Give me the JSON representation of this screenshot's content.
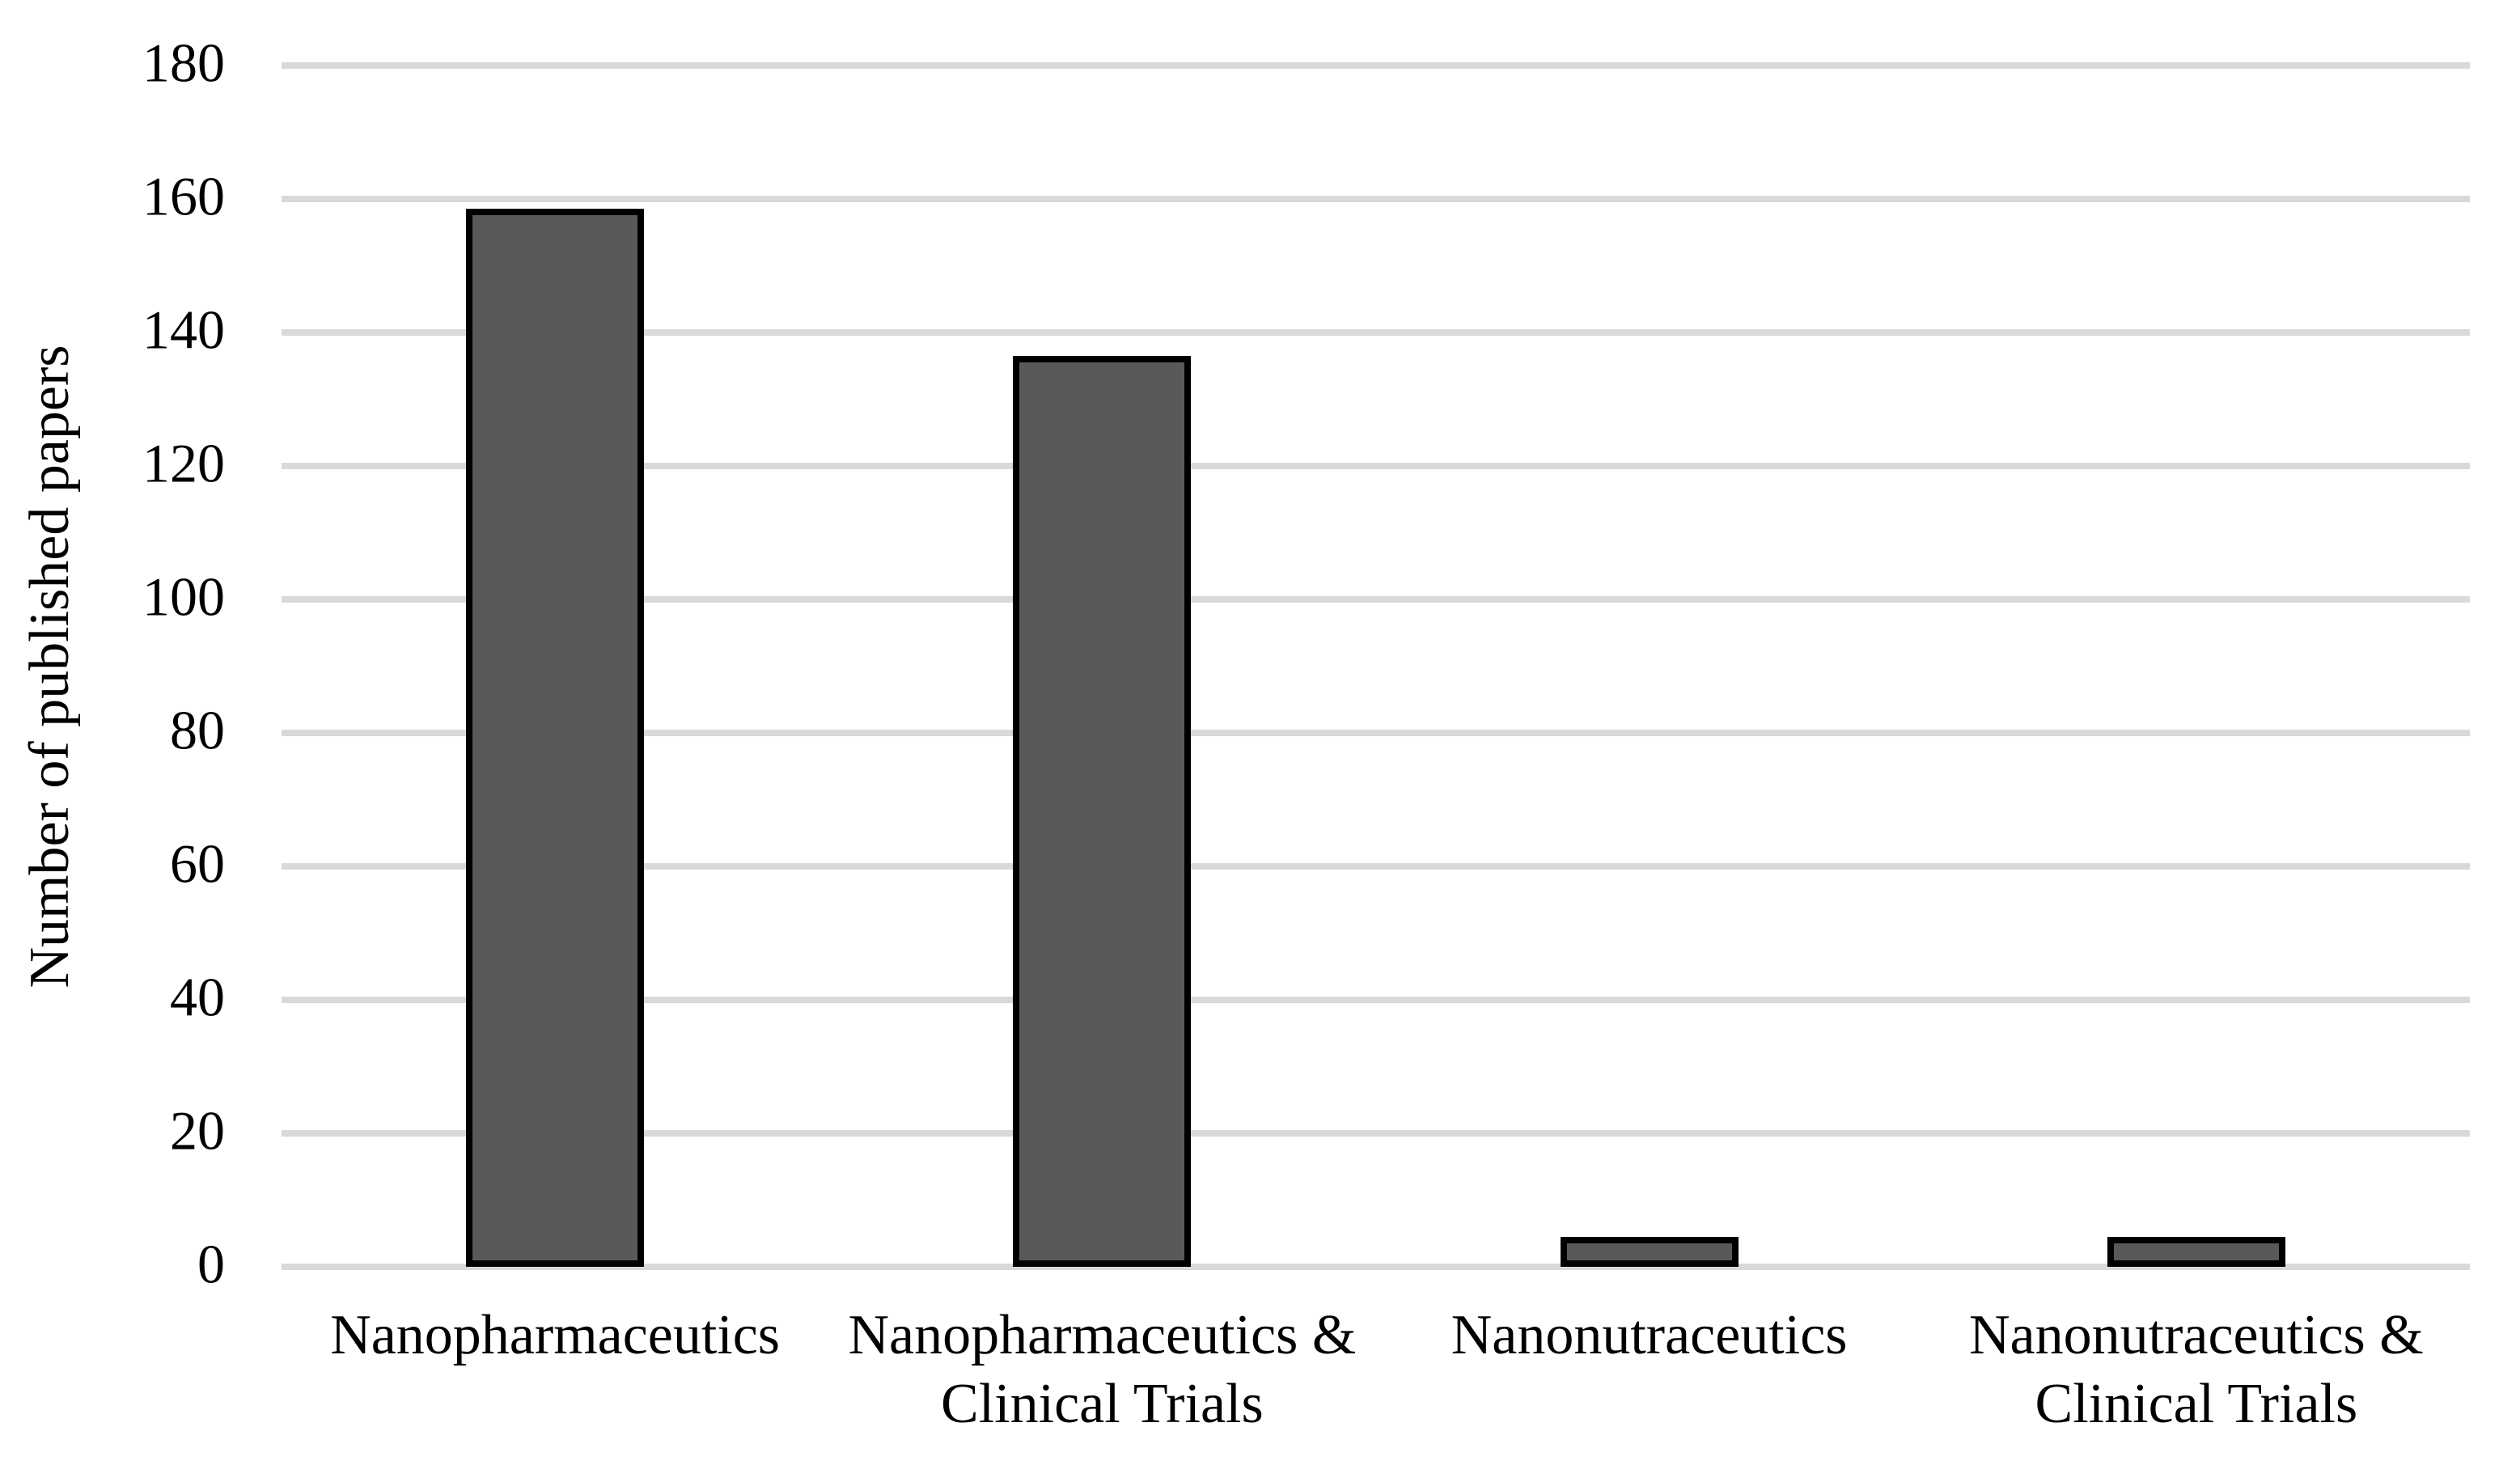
{
  "chart_data": {
    "type": "bar",
    "categories": [
      "Nanopharmaceutics",
      "Nanopharmaceutics & Clinical Trials",
      "Nanonutraceutics",
      "Nanonutraceutics & Clinical Trials"
    ],
    "values": [
      158,
      136,
      4,
      4
    ],
    "title": "",
    "xlabel": "",
    "ylabel": "Number of published papers",
    "ylim": [
      0,
      180
    ],
    "yticks": [
      0,
      20,
      40,
      60,
      80,
      100,
      120,
      140,
      160,
      180
    ],
    "grid": "horizontal-only",
    "legend": "none",
    "colors": {
      "bar_fill": "#595959",
      "bar_border": "#000000",
      "gridline": "#D9D9D9",
      "text": "#000000",
      "background": "#FFFFFF"
    }
  }
}
